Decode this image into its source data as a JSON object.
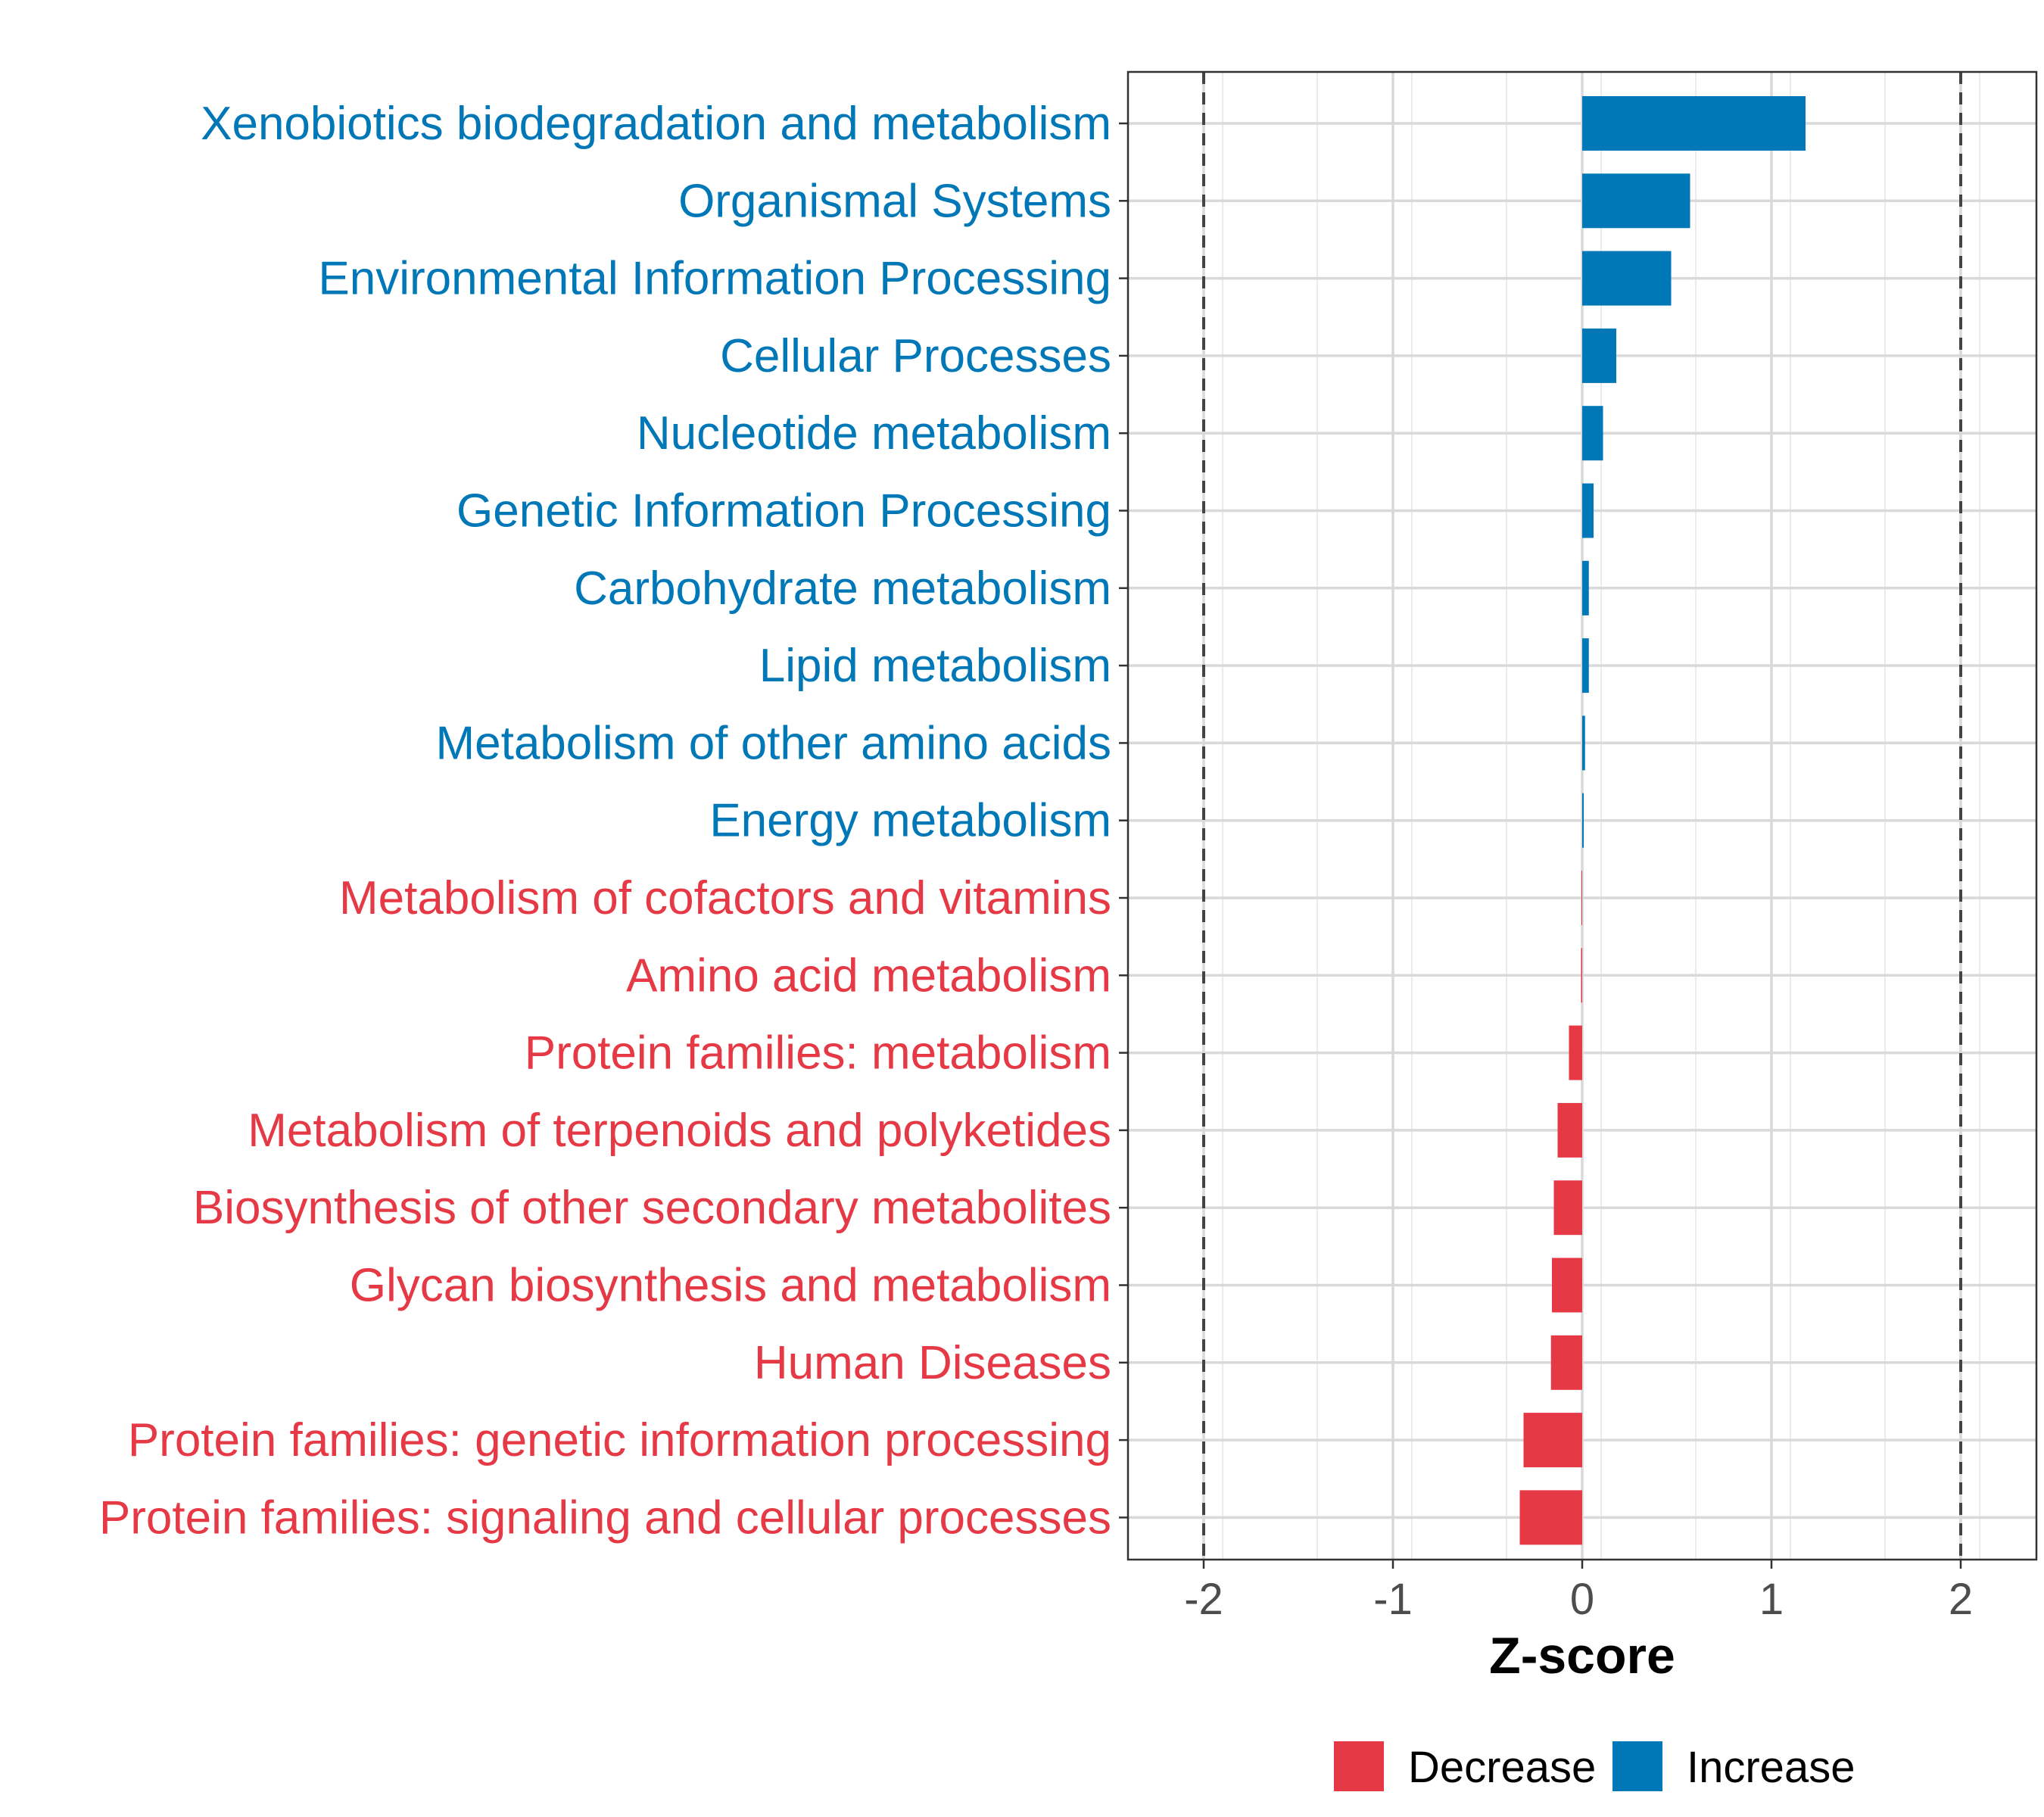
{
  "chart_data": {
    "type": "bar",
    "orientation": "horizontal",
    "xlabel": "Z-score",
    "xlim": [
      -2.4,
      2.4
    ],
    "xticks": [
      -2,
      -1,
      0,
      1,
      2
    ],
    "xtick_labels": [
      "-2",
      "-1",
      "0",
      "1",
      "2"
    ],
    "reference_lines": [
      -2,
      2
    ],
    "grid": true,
    "legend_position": "bottom",
    "colors": {
      "Decrease": "#e63946",
      "Increase": "#0077b6"
    },
    "legend": [
      {
        "name": "Decrease",
        "color": "#e63946"
      },
      {
        "name": "Increase",
        "color": "#0077b6"
      }
    ],
    "categories": [
      "Xenobiotics biodegradation and metabolism",
      "Organismal Systems",
      "Environmental Information Processing",
      "Cellular Processes",
      "Nucleotide metabolism",
      "Genetic Information Processing",
      "Carbohydrate metabolism",
      "Lipid metabolism",
      "Metabolism of other amino acids",
      "Energy metabolism",
      "Metabolism of cofactors and vitamins",
      "Amino acid metabolism",
      "Protein families: metabolism",
      "Metabolism of terpenoids and polyketides",
      "Biosynthesis of other secondary metabolites",
      "Glycan biosynthesis and metabolism",
      "Human Diseases",
      "Protein families: genetic information processing",
      "Protein families: signaling and cellular processes"
    ],
    "values": [
      1.18,
      0.57,
      0.47,
      0.18,
      0.11,
      0.06,
      0.035,
      0.035,
      0.015,
      0.008,
      -0.004,
      -0.006,
      -0.07,
      -0.13,
      -0.15,
      -0.16,
      -0.165,
      -0.31,
      -0.33
    ],
    "groups": [
      "Increase",
      "Increase",
      "Increase",
      "Increase",
      "Increase",
      "Increase",
      "Increase",
      "Increase",
      "Increase",
      "Increase",
      "Decrease",
      "Decrease",
      "Decrease",
      "Decrease",
      "Decrease",
      "Decrease",
      "Decrease",
      "Decrease",
      "Decrease"
    ]
  }
}
